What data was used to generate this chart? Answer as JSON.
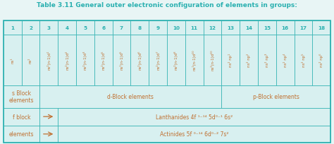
{
  "title": "Table 3.11 General outer electronic configuration of elements in groups:",
  "title_color": "#2ab0b0",
  "title_fontsize": 6.5,
  "bg_color": "#e8f5f5",
  "cell_border": "#2ab0b0",
  "table_bg": "#d8f0f0",
  "text_color_orange": "#c07030",
  "text_color_teal": "#2ab0b0",
  "header_row": [
    "1",
    "2",
    "3",
    "4",
    "5",
    "6",
    "7",
    "8",
    "9",
    "10",
    "11",
    "12",
    "13",
    "14",
    "15",
    "16",
    "17",
    "18"
  ],
  "config_row": [
    "ns¹",
    "ns²",
    "ns²(n-1)d¹",
    "ns²(n-1)d²",
    "ns²(n-1)d³",
    "ns²(n-1)d⁵",
    "ns¹(n-1)d⁵",
    "ns²(n-1)d⁶",
    "ns²(n-1)d⁷",
    "ns²(n-1)d⁸",
    "ns¹(n-1)d¹⁰",
    "ns²(n-1)d¹⁰",
    "ns² np¹",
    "ns² np²",
    "ns² np³",
    "ns² np⁴",
    "ns² np⁵",
    "ns² np⁶"
  ],
  "s_block_label": "s Block\nelements",
  "d_block_label": "d-Block elements",
  "p_block_label": "p-Block elements",
  "f_block_label1": "f block",
  "f_block_label2": "elements",
  "lanthanides_label": "Lanthanides 4f ¹⁻¹⁴ 5d⁰⁻¹ 6s²",
  "actinides_label": "Actinides 5f ⁰⁻¹⁴ 6d⁰⁻² 7s²",
  "header_fontsize": 5.2,
  "config_fontsize": 4.0,
  "block_fontsize": 5.5,
  "fblock_fontsize": 5.5,
  "lant_act_fontsize": 5.5
}
